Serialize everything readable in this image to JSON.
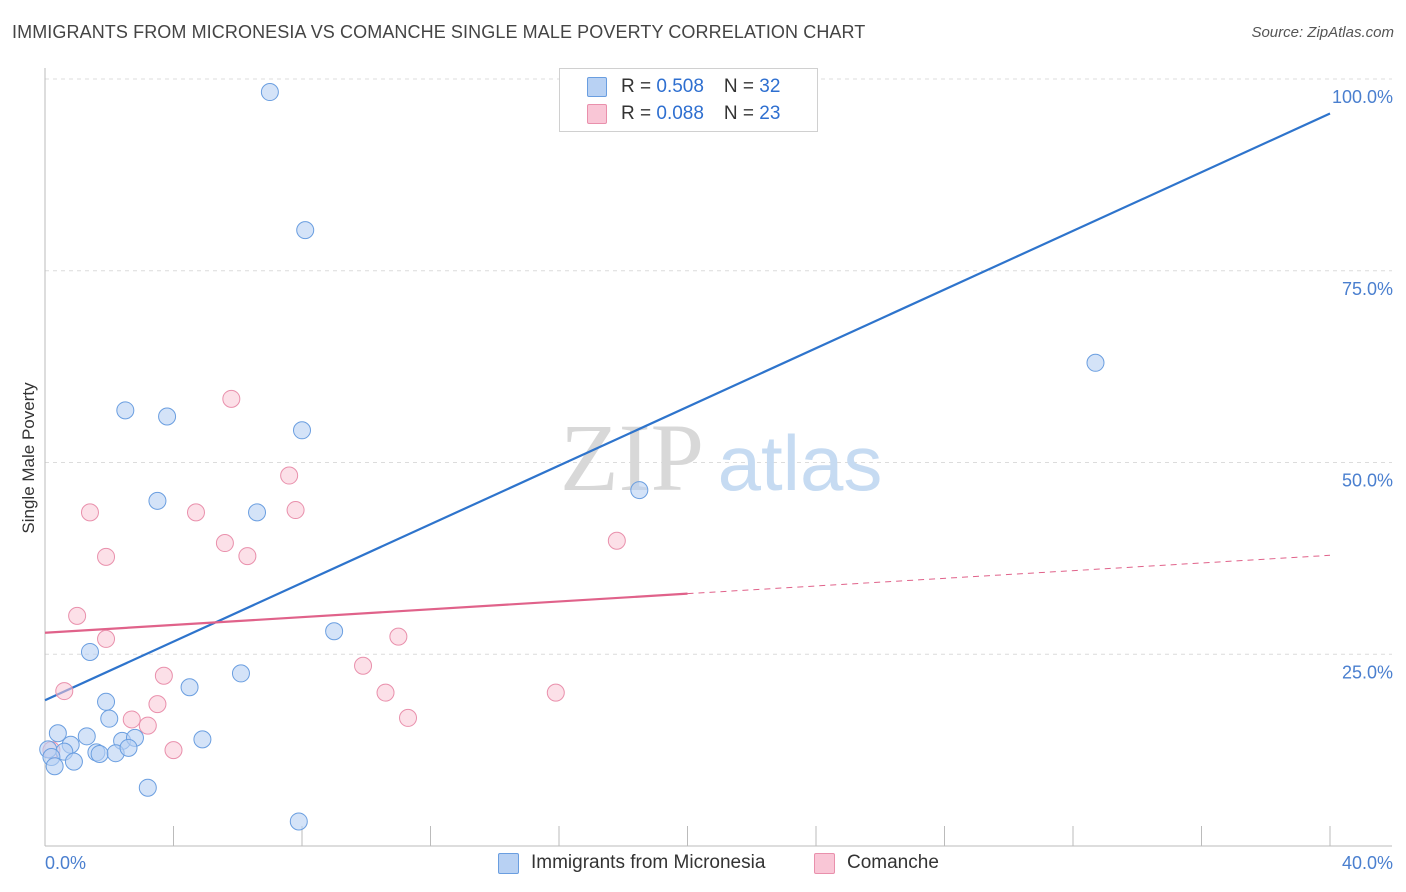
{
  "title": "IMMIGRANTS FROM MICRONESIA VS COMANCHE SINGLE MALE POVERTY CORRELATION CHART",
  "source": "Source: ZipAtlas.com",
  "watermark": {
    "zip": "ZIP",
    "atlas": "atlas"
  },
  "legend": {
    "series1": {
      "r_label": "R = ",
      "r_value": "0.508",
      "n_label": "N = ",
      "n_value": "32"
    },
    "series2": {
      "r_label": "R = ",
      "r_value": "0.088",
      "n_label": "N = ",
      "n_value": "23"
    }
  },
  "colors": {
    "blue_fill": "#b8d1f3",
    "blue_stroke": "#6a9ee0",
    "blue_line": "#2e74cc",
    "pink_fill": "#f9c6d6",
    "pink_stroke": "#e990ac",
    "pink_line": "#e0628a",
    "tick_text": "#4a7fcf",
    "grid": "#dcdcdc"
  },
  "chart_data": {
    "type": "scatter",
    "title": "IMMIGRANTS FROM MICRONESIA VS COMANCHE SINGLE MALE POVERTY CORRELATION CHART",
    "xlabel": "",
    "ylabel": "Single Male Poverty",
    "xlim": [
      0,
      40
    ],
    "ylim": [
      0,
      100
    ],
    "x_tick_labels": [
      "0.0%",
      "40.0%"
    ],
    "y_ticks": [
      25,
      50,
      75,
      100
    ],
    "y_tick_labels": [
      "25.0%",
      "50.0%",
      "75.0%",
      "100.0%"
    ],
    "grid": true,
    "legend_position": "top-center",
    "series": [
      {
        "name": "Immigrants from Micronesia",
        "color": "#6a9ee0",
        "points": [
          [
            7.0,
            98.3
          ],
          [
            8.1,
            80.3
          ],
          [
            32.7,
            63.0
          ],
          [
            2.5,
            56.8
          ],
          [
            3.8,
            56.0
          ],
          [
            8.0,
            54.2
          ],
          [
            18.5,
            46.4
          ],
          [
            3.5,
            45.0
          ],
          [
            6.6,
            43.5
          ],
          [
            9.0,
            28.0
          ],
          [
            1.4,
            25.3
          ],
          [
            6.1,
            22.5
          ],
          [
            4.5,
            20.7
          ],
          [
            1.9,
            18.8
          ],
          [
            2.0,
            16.6
          ],
          [
            0.4,
            14.7
          ],
          [
            1.3,
            14.3
          ],
          [
            0.8,
            13.2
          ],
          [
            2.4,
            13.7
          ],
          [
            2.8,
            14.1
          ],
          [
            4.9,
            13.9
          ],
          [
            0.6,
            12.3
          ],
          [
            1.6,
            12.2
          ],
          [
            1.7,
            12.0
          ],
          [
            2.2,
            12.1
          ],
          [
            2.6,
            12.8
          ],
          [
            0.1,
            12.6
          ],
          [
            0.2,
            11.6
          ],
          [
            0.9,
            11.0
          ],
          [
            0.3,
            10.4
          ],
          [
            3.2,
            7.6
          ],
          [
            7.9,
            3.2
          ]
        ],
        "trend": {
          "x": [
            0,
            40
          ],
          "y": [
            19.0,
            95.5
          ]
        }
      },
      {
        "name": "Comanche",
        "color": "#e990ac",
        "points": [
          [
            5.8,
            58.3
          ],
          [
            7.6,
            48.3
          ],
          [
            7.8,
            43.8
          ],
          [
            1.4,
            43.5
          ],
          [
            4.7,
            43.5
          ],
          [
            5.6,
            39.5
          ],
          [
            17.8,
            39.8
          ],
          [
            1.9,
            37.7
          ],
          [
            6.3,
            37.8
          ],
          [
            1.0,
            30.0
          ],
          [
            11.0,
            27.3
          ],
          [
            1.9,
            27.0
          ],
          [
            9.9,
            23.5
          ],
          [
            3.7,
            22.2
          ],
          [
            0.6,
            20.2
          ],
          [
            10.6,
            20.0
          ],
          [
            15.9,
            20.0
          ],
          [
            3.5,
            18.5
          ],
          [
            11.3,
            16.7
          ],
          [
            2.7,
            16.5
          ],
          [
            3.2,
            15.7
          ],
          [
            4.0,
            12.5
          ],
          [
            0.2,
            12.5
          ]
        ],
        "trend": {
          "x": [
            0,
            20
          ],
          "y": [
            27.8,
            32.9
          ],
          "dashed_to": {
            "x": 40,
            "y": 37.9
          }
        }
      }
    ]
  },
  "bottom_legend": {
    "series1_label": "Immigrants from Micronesia",
    "series2_label": "Comanche"
  }
}
